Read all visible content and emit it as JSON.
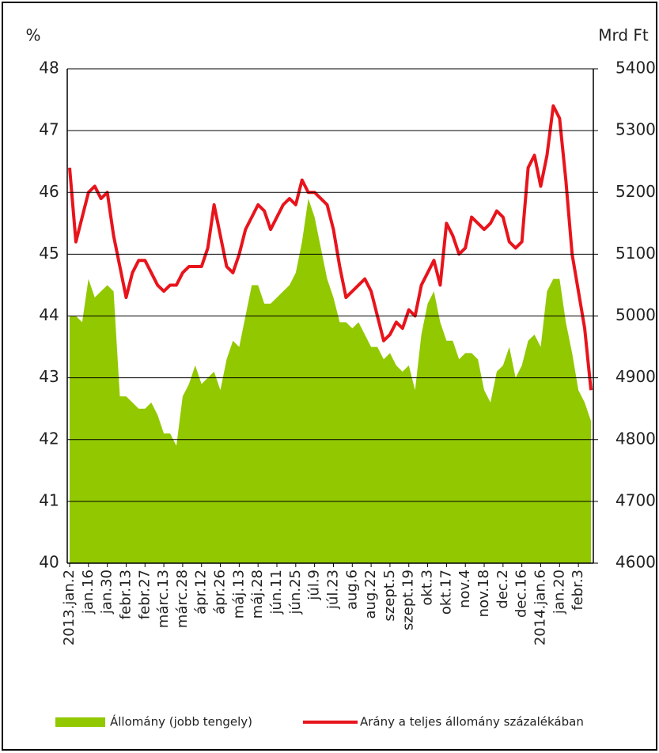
{
  "chart_data": {
    "type": "line",
    "ylabel": "%",
    "y2label": "Mrd Ft",
    "ylim": [
      40,
      48
    ],
    "yticks": [
      40,
      41,
      42,
      43,
      44,
      45,
      46,
      47,
      48
    ],
    "y2lim": [
      4600,
      5400
    ],
    "y2ticks": [
      4600,
      4700,
      4800,
      4900,
      5000,
      5100,
      5200,
      5300,
      5400
    ],
    "grid": true,
    "categories": [
      "2013.jan.2",
      null,
      null,
      "jan.16",
      null,
      null,
      "jan.30",
      null,
      null,
      "febr.13",
      null,
      null,
      "febr.27",
      null,
      null,
      "márc.13",
      null,
      null,
      "márc.28",
      null,
      null,
      "ápr.12",
      null,
      null,
      "ápr.26",
      null,
      null,
      "máj.13",
      null,
      null,
      "máj.28",
      null,
      null,
      "jún.11",
      null,
      null,
      "jún.25",
      null,
      null,
      "júl.9",
      null,
      null,
      "júl.23",
      null,
      null,
      "aug.6",
      null,
      null,
      "aug.22",
      null,
      null,
      "szept.5",
      null,
      null,
      "szept.19",
      null,
      null,
      "okt.3",
      null,
      null,
      "okt.17",
      null,
      null,
      "nov.4",
      null,
      null,
      "nov.18",
      null,
      null,
      "dec.2",
      null,
      null,
      "dec.16",
      null,
      null,
      "2014.jan.6",
      null,
      null,
      "jan.20",
      null,
      null,
      "febr.3",
      null,
      null
    ],
    "series": [
      {
        "name": "Állomány (jobb tengely)",
        "type": "area",
        "axis": "y2",
        "color": "#92c800",
        "values": [
          5000,
          5000,
          4990,
          5060,
          5030,
          5040,
          5050,
          5040,
          4870,
          4870,
          4860,
          4850,
          4850,
          4860,
          4840,
          4810,
          4810,
          4790,
          4870,
          4890,
          4920,
          4890,
          4900,
          4910,
          4880,
          4930,
          4960,
          4950,
          5000,
          5050,
          5050,
          5020,
          5020,
          5030,
          5040,
          5050,
          5070,
          5120,
          5190,
          5160,
          5110,
          5060,
          5030,
          4990,
          4990,
          4980,
          4990,
          4970,
          4950,
          4950,
          4930,
          4940,
          4920,
          4910,
          4920,
          4880,
          4970,
          5020,
          5040,
          4990,
          4960,
          4960,
          4930,
          4940,
          4940,
          4930,
          4880,
          4860,
          4910,
          4920,
          4950,
          4900,
          4920,
          4960,
          4970,
          4950,
          5040,
          5060,
          5060,
          4990,
          4940,
          4880,
          4860,
          4830
        ]
      },
      {
        "name": "Arány a teljes állomány százalékában",
        "type": "line",
        "color": "#e8141c",
        "values": [
          46.4,
          45.2,
          45.6,
          46.0,
          46.1,
          45.9,
          46.0,
          45.3,
          44.8,
          44.3,
          44.7,
          44.9,
          44.9,
          44.7,
          44.5,
          44.4,
          44.5,
          44.5,
          44.7,
          44.8,
          44.8,
          44.8,
          45.1,
          45.8,
          45.3,
          44.8,
          44.7,
          45.0,
          45.4,
          45.6,
          45.8,
          45.7,
          45.4,
          45.6,
          45.8,
          45.9,
          45.8,
          46.2,
          46.0,
          46.0,
          45.9,
          45.8,
          45.4,
          44.8,
          44.3,
          44.4,
          44.5,
          44.6,
          44.4,
          44.0,
          43.6,
          43.7,
          43.9,
          43.8,
          44.1,
          44.0,
          44.5,
          44.7,
          44.9,
          44.5,
          45.5,
          45.3,
          45.0,
          45.1,
          45.6,
          45.5,
          45.4,
          45.5,
          45.7,
          45.6,
          45.2,
          45.1,
          45.2,
          46.4,
          46.6,
          46.1,
          46.6,
          47.4,
          47.2,
          46.2,
          45.0,
          44.4,
          43.8,
          42.8
        ]
      }
    ]
  }
}
